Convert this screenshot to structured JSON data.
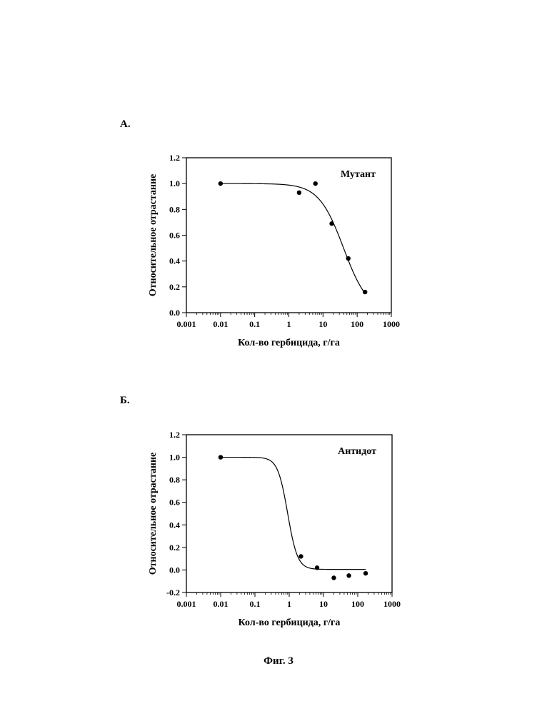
{
  "panels": [
    "А.",
    "Б."
  ],
  "figure_caption": "Фиг. 3",
  "chart_data": [
    {
      "type": "scatter",
      "title": "",
      "legend_label": "Мутант",
      "legend_placement": "top-right",
      "xlabel": "Кол-во гербицида, г/га",
      "ylabel": "Относительное отрастание",
      "xscale": "log",
      "xlim": [
        0.001,
        1000
      ],
      "ylim": [
        0.0,
        1.2
      ],
      "xticks": [
        "0.001",
        "0.01",
        "0.1",
        "1",
        "10",
        "100",
        "1000"
      ],
      "yticks": [
        "0.0",
        "0.2",
        "0.4",
        "0.6",
        "0.8",
        "1.0",
        "1.2"
      ],
      "grid": false,
      "points": [
        {
          "x": 0.01,
          "y": 1.0
        },
        {
          "x": 2,
          "y": 0.93
        },
        {
          "x": 6,
          "y": 1.0
        },
        {
          "x": 18,
          "y": 0.69
        },
        {
          "x": 55,
          "y": 0.42
        },
        {
          "x": 170,
          "y": 0.16
        }
      ],
      "fit_curve": {
        "top": 1.0,
        "bottom": 0.0,
        "ec50": 40,
        "hill": 1.2
      }
    },
    {
      "type": "scatter",
      "title": "",
      "legend_label": "Антидот",
      "legend_placement": "top-right",
      "xlabel": "Кол-во гербицида, г/га",
      "ylabel": "Относительное отрастание",
      "xscale": "log",
      "xlim": [
        0.001,
        1000
      ],
      "ylim": [
        -0.2,
        1.2
      ],
      "xticks": [
        "0.001",
        "0.01",
        "0.1",
        "1",
        "10",
        "100",
        "1000"
      ],
      "yticks": [
        "-0.2",
        "0.0",
        "0.2",
        "0.4",
        "0.6",
        "0.8",
        "1.0",
        "1.2"
      ],
      "grid": false,
      "points": [
        {
          "x": 0.01,
          "y": 1.0
        },
        {
          "x": 2.2,
          "y": 0.12
        },
        {
          "x": 6.5,
          "y": 0.02
        },
        {
          "x": 20,
          "y": -0.07
        },
        {
          "x": 55,
          "y": -0.05
        },
        {
          "x": 170,
          "y": -0.03
        }
      ],
      "fit_curve": {
        "top": 1.0,
        "bottom": 0.005,
        "ec50": 0.9,
        "hill": 3.0
      }
    }
  ]
}
